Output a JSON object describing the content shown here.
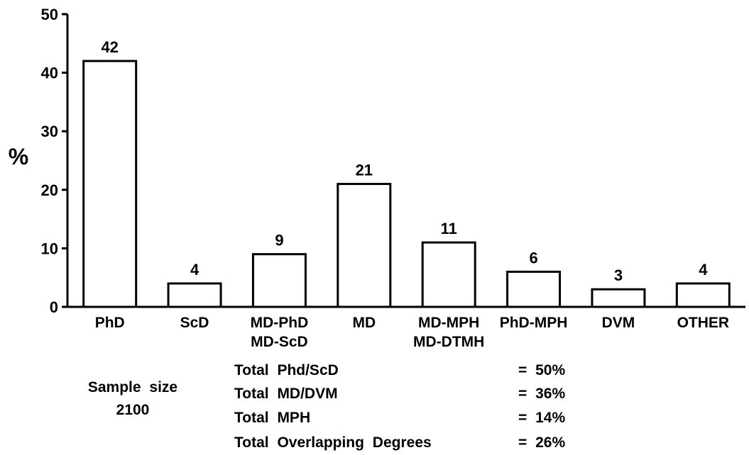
{
  "chart_data": {
    "type": "bar",
    "categories": [
      [
        "PhD"
      ],
      [
        "ScD"
      ],
      [
        "MD-PhD",
        "MD-ScD"
      ],
      [
        "MD"
      ],
      [
        "MD-MPH",
        "MD-DTMH"
      ],
      [
        "PhD-MPH"
      ],
      [
        "DVM"
      ],
      [
        "OTHER"
      ]
    ],
    "values": [
      42,
      4,
      9,
      21,
      11,
      6,
      3,
      4
    ],
    "data_labels": [
      "42",
      "4",
      "9",
      "21",
      "11",
      "6",
      "3",
      "4"
    ],
    "ylabel": "%",
    "ylim": [
      0,
      50
    ],
    "yticks": [
      0,
      10,
      20,
      30,
      40,
      50
    ],
    "grid": false,
    "bar_fill": "#ffffff",
    "bar_stroke": "#000000"
  },
  "sample": {
    "label": "Sample size",
    "value": "2100"
  },
  "summary": [
    {
      "label": "Total Phd/ScD",
      "value": "= 50%"
    },
    {
      "label": "Total MD/DVM",
      "value": "= 36%"
    },
    {
      "label": "Total MPH",
      "value": "= 14%"
    },
    {
      "label": "Total Overlapping Degrees",
      "value": "= 26%"
    }
  ]
}
